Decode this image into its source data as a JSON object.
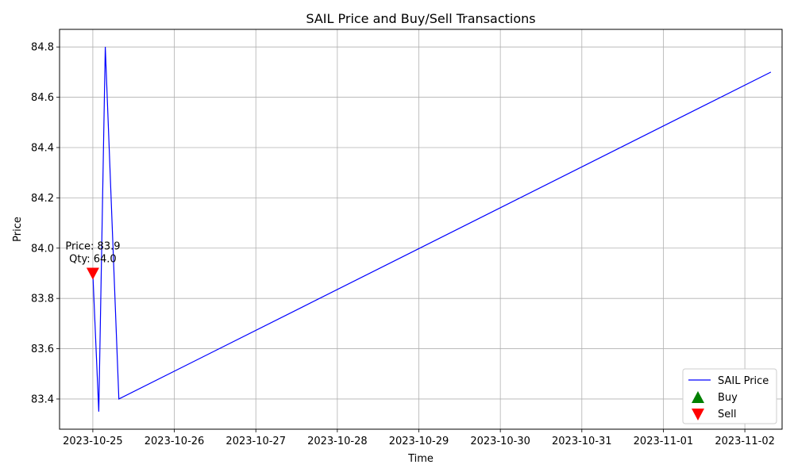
{
  "chart_data": {
    "type": "line",
    "title": "SAIL Price and Buy/Sell Transactions",
    "xlabel": "Time",
    "ylabel": "Price",
    "grid": true,
    "legend_position": "lower-right",
    "x_ticks": [
      "2023-10-25",
      "2023-10-26",
      "2023-10-27",
      "2023-10-28",
      "2023-10-29",
      "2023-10-30",
      "2023-10-31",
      "2023-11-01",
      "2023-11-02"
    ],
    "y_ticks": [
      83.4,
      83.6,
      83.8,
      84.0,
      84.2,
      84.4,
      84.6,
      84.8
    ],
    "xlim": [
      "2023-10-24 14:12",
      "2023-11-02 10:58"
    ],
    "ylim": [
      83.28,
      84.87
    ],
    "series": [
      {
        "name": "SAIL Price",
        "color": "#0000ff",
        "x": [
          "2023-10-25 00:00",
          "2023-10-25 01:45",
          "2023-10-25 03:40",
          "2023-10-25 07:40",
          "2023-11-02 07:40"
        ],
        "y": [
          83.9,
          83.35,
          84.8,
          83.4,
          84.7
        ]
      }
    ],
    "buy": {
      "name": "Buy",
      "color": "#008000",
      "points": []
    },
    "sell": {
      "name": "Sell",
      "color": "#ff0000",
      "points": [
        {
          "x": "2023-10-25 00:00",
          "y": 83.9,
          "label_price": "Price: 83.9",
          "label_qty": "Qty: 64.0"
        }
      ]
    }
  }
}
